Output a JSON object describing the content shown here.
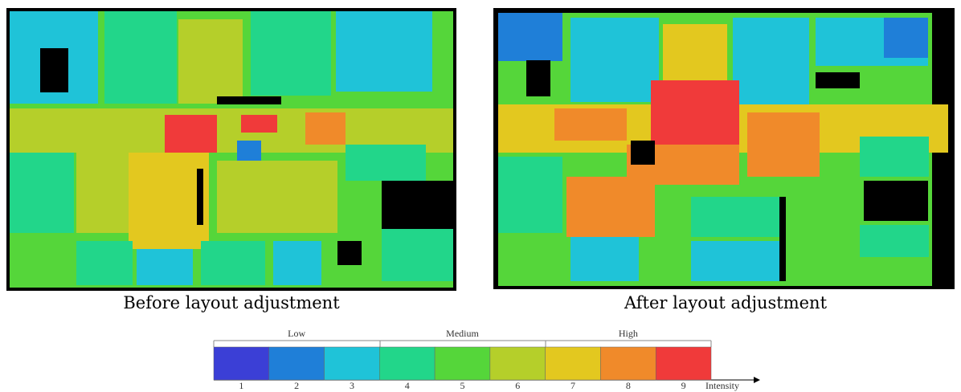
{
  "panels": [
    {
      "caption": "Before layout adjustment"
    },
    {
      "caption": "After layout adjustment"
    }
  ],
  "legend": {
    "groups": [
      "Low",
      "Medium",
      "High"
    ],
    "levels": [
      1,
      2,
      3,
      4,
      5,
      6,
      7,
      8,
      9
    ],
    "colors": [
      "#3b3fd6",
      "#1f7fd8",
      "#1fc3d8",
      "#22d68a",
      "#55d63a",
      "#b5cf2a",
      "#e3c81f",
      "#f08a2a",
      "#f03a3a"
    ],
    "axis_label": "Intensity"
  }
}
